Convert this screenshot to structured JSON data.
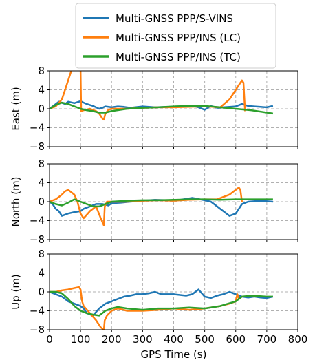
{
  "chart_data": [
    {
      "type": "line",
      "ylabel": "East (m)",
      "xlim": [
        0,
        800
      ],
      "ylim": [
        -8,
        8
      ],
      "yticks": [
        8,
        4,
        0,
        -4,
        -8
      ],
      "xticks": [
        0,
        100,
        200,
        300,
        400,
        500,
        600,
        700,
        800
      ],
      "grid": true,
      "series": [
        {
          "name": "Multi-GNSS PPP/S-VINS",
          "color": "#1f77b4",
          "x": [
            0,
            10,
            30,
            50,
            60,
            80,
            100,
            110,
            120,
            140,
            160,
            170,
            180,
            200,
            220,
            240,
            260,
            300,
            340,
            380,
            420,
            460,
            480,
            500,
            520,
            540,
            560,
            580,
            600,
            620,
            640,
            660,
            680,
            700,
            720
          ],
          "y": [
            0,
            0.5,
            1.5,
            1.0,
            1.5,
            1.2,
            1.6,
            1.3,
            1.0,
            0.6,
            0.0,
            0.2,
            0.5,
            0.3,
            0.5,
            0.4,
            0.2,
            0.5,
            0.3,
            0.4,
            0.5,
            0.6,
            0.3,
            -0.2,
            0.6,
            0.2,
            0.3,
            0.4,
            0.5,
            1.0,
            0.6,
            0.5,
            0.4,
            0.3,
            0.6
          ]
        },
        {
          "name": "Multi-GNSS PPP/INS (LC)",
          "color": "#ff7f0e",
          "x": [
            0,
            20,
            40,
            50,
            60,
            70,
            80,
            90,
            100,
            102,
            110,
            130,
            150,
            160,
            170,
            175,
            180,
            190,
            200,
            250,
            300,
            350,
            400,
            450,
            500,
            550,
            580,
            600,
            610,
            620,
            625,
            630
          ],
          "y": [
            0,
            0.5,
            2.0,
            4.0,
            6.0,
            8.0,
            8.5,
            8.5,
            8.5,
            -0.5,
            -0.3,
            0.0,
            -0.5,
            -1.0,
            -2.0,
            -2.3,
            -1.0,
            -0.2,
            0.0,
            0.0,
            0.2,
            0.3,
            0.3,
            0.4,
            0.5,
            0.3,
            2.0,
            4.0,
            5.0,
            6.0,
            5.5,
            -0.5
          ]
        },
        {
          "name": "Multi-GNSS PPP/INS (TC)",
          "color": "#2ca02c",
          "x": [
            0,
            20,
            40,
            60,
            80,
            100,
            120,
            140,
            160,
            180,
            200,
            250,
            300,
            350,
            400,
            450,
            500,
            550,
            600,
            650,
            700,
            720
          ],
          "y": [
            0,
            0.8,
            1.3,
            1.0,
            0.5,
            0.0,
            -0.3,
            -0.5,
            -0.8,
            -0.8,
            -0.5,
            0.0,
            0.2,
            0.3,
            0.5,
            0.6,
            0.6,
            0.3,
            0.0,
            -0.3,
            -0.8,
            -1.0
          ]
        }
      ]
    },
    {
      "type": "line",
      "ylabel": "North (m)",
      "xlim": [
        0,
        800
      ],
      "ylim": [
        -8,
        8
      ],
      "yticks": [
        8,
        4,
        0,
        -4,
        -8
      ],
      "xticks": [
        0,
        100,
        200,
        300,
        400,
        500,
        600,
        700,
        800
      ],
      "grid": true,
      "series": [
        {
          "name": "Multi-GNSS PPP/S-VINS",
          "color": "#1f77b4",
          "x": [
            0,
            10,
            20,
            30,
            40,
            60,
            80,
            100,
            110,
            130,
            150,
            170,
            190,
            200,
            230,
            260,
            300,
            340,
            380,
            420,
            460,
            500,
            520,
            530,
            540,
            560,
            580,
            600,
            620,
            640,
            680,
            720
          ],
          "y": [
            0,
            -0.5,
            -1.5,
            -2.0,
            -3.0,
            -2.5,
            -2.2,
            -2.0,
            -1.5,
            -1.0,
            -0.5,
            -0.5,
            -0.8,
            -0.3,
            -0.2,
            0.0,
            0.2,
            0.4,
            0.3,
            0.4,
            0.8,
            0.3,
            0.0,
            -0.5,
            -1.0,
            -2.0,
            -3.0,
            -2.5,
            -0.5,
            0.0,
            0.2,
            0.0
          ]
        },
        {
          "name": "Multi-GNSS PPP/INS (LC)",
          "color": "#ff7f0e",
          "x": [
            0,
            20,
            40,
            50,
            60,
            80,
            90,
            100,
            110,
            130,
            150,
            165,
            175,
            178,
            185,
            200,
            250,
            300,
            350,
            400,
            450,
            500,
            540,
            580,
            600,
            610,
            615,
            620
          ],
          "y": [
            0,
            0.5,
            1.5,
            2.2,
            2.5,
            1.5,
            0.0,
            -2.5,
            -3.5,
            -2.0,
            -1.0,
            -3.5,
            -5.0,
            -1.0,
            0.0,
            0.0,
            0.0,
            0.2,
            0.3,
            0.2,
            0.4,
            0.5,
            0.5,
            1.5,
            2.5,
            3.0,
            2.5,
            0.0
          ]
        },
        {
          "name": "Multi-GNSS PPP/INS (TC)",
          "color": "#2ca02c",
          "x": [
            0,
            20,
            40,
            60,
            80,
            100,
            120,
            140,
            160,
            180,
            200,
            250,
            300,
            350,
            400,
            450,
            500,
            550,
            600,
            650,
            700,
            720
          ],
          "y": [
            0,
            -0.5,
            -0.8,
            -0.2,
            0.5,
            0.0,
            -0.5,
            -1.0,
            -1.0,
            -0.5,
            0.0,
            0.2,
            0.3,
            0.3,
            0.4,
            0.5,
            0.5,
            0.4,
            0.5,
            0.5,
            0.5,
            0.5
          ]
        }
      ]
    },
    {
      "type": "line",
      "ylabel": "Up (m)",
      "xlabel": "GPS Time (s)",
      "xlim": [
        0,
        800
      ],
      "ylim": [
        -8,
        8
      ],
      "yticks": [
        8,
        4,
        0,
        -4,
        -8
      ],
      "xticks": [
        0,
        100,
        200,
        300,
        400,
        500,
        600,
        700,
        800
      ],
      "grid": true,
      "series": [
        {
          "name": "Multi-GNSS PPP/S-VINS",
          "color": "#1f77b4",
          "x": [
            0,
            20,
            40,
            60,
            80,
            100,
            110,
            120,
            140,
            160,
            180,
            200,
            220,
            240,
            260,
            280,
            300,
            320,
            340,
            360,
            400,
            440,
            460,
            480,
            500,
            520,
            540,
            560,
            580,
            600,
            620,
            640,
            660,
            680,
            700,
            720
          ],
          "y": [
            0,
            -0.5,
            -1.0,
            -2.0,
            -2.5,
            -3.0,
            -3.5,
            -4.5,
            -5.0,
            -3.5,
            -2.5,
            -2.0,
            -1.5,
            -1.0,
            -0.8,
            -0.5,
            -0.5,
            -0.3,
            0.0,
            -0.5,
            -0.5,
            -0.8,
            -0.5,
            0.5,
            -1.0,
            -1.3,
            -0.8,
            -0.5,
            0.0,
            -0.5,
            -1.0,
            -1.2,
            -1.0,
            -1.2,
            -1.3,
            -1.0
          ]
        },
        {
          "name": "Multi-GNSS PPP/INS (LC)",
          "color": "#ff7f0e",
          "x": [
            0,
            20,
            40,
            60,
            80,
            95,
            100,
            105,
            110,
            130,
            150,
            165,
            175,
            178,
            185,
            200,
            220,
            250,
            300,
            350,
            400,
            450,
            500,
            550,
            580,
            600,
            605,
            610,
            620
          ],
          "y": [
            0,
            0.0,
            0.3,
            0.5,
            0.8,
            1.0,
            0.5,
            -2.0,
            -3.0,
            -4.5,
            -6.0,
            -7.5,
            -8.0,
            -6.0,
            -5.0,
            -4.0,
            -3.5,
            -4.0,
            -4.0,
            -3.8,
            -3.5,
            -3.8,
            -3.5,
            -3.0,
            -2.5,
            -2.0,
            -0.5,
            -1.5,
            -1.0
          ]
        },
        {
          "name": "Multi-GNSS PPP/INS (TC)",
          "color": "#2ca02c",
          "x": [
            0,
            20,
            40,
            60,
            80,
            100,
            120,
            140,
            160,
            180,
            200,
            220,
            250,
            300,
            350,
            400,
            450,
            500,
            550,
            600,
            620,
            650,
            700,
            720
          ],
          "y": [
            0,
            0.0,
            -0.3,
            -1.5,
            -3.0,
            -4.0,
            -4.5,
            -4.8,
            -5.0,
            -4.0,
            -3.5,
            -3.2,
            -3.5,
            -3.8,
            -3.5,
            -3.5,
            -3.3,
            -3.5,
            -3.0,
            -2.0,
            -1.0,
            -0.8,
            -1.0,
            -1.0
          ]
        }
      ]
    }
  ],
  "legend": {
    "location": "top-center",
    "entries": [
      {
        "label": "Multi-GNSS PPP/S-VINS",
        "color": "#1f77b4"
      },
      {
        "label": "Multi-GNSS PPP/INS (LC)",
        "color": "#ff7f0e"
      },
      {
        "label": "Multi-GNSS PPP/INS (TC)",
        "color": "#2ca02c"
      }
    ]
  }
}
